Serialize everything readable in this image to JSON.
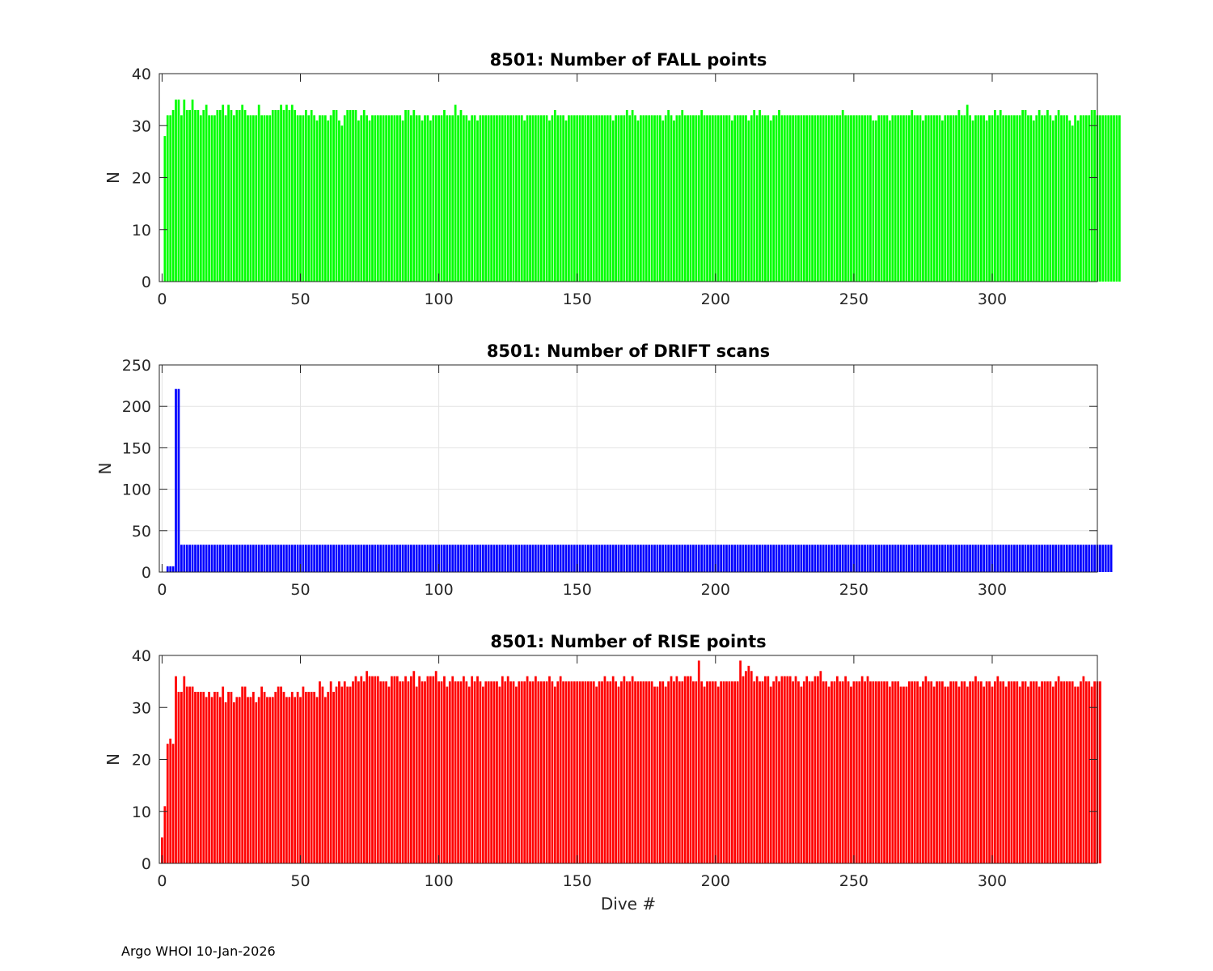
{
  "footer": "Argo WHOI 10-Jan-2026",
  "chart_data": [
    {
      "type": "bar",
      "title": "8501: Number of FALL points",
      "xlabel": "",
      "ylabel": "N",
      "xlim": [
        -1,
        338
      ],
      "ylim": [
        0,
        40
      ],
      "xticks": [
        0,
        50,
        100,
        150,
        200,
        250,
        300
      ],
      "yticks": [
        0,
        10,
        20,
        30,
        40
      ],
      "grid": false,
      "color": "#00ff00",
      "x_start": 1,
      "values": [
        28,
        32,
        32,
        33,
        35,
        35,
        32,
        35,
        33,
        33,
        35,
        33,
        33,
        32,
        33,
        34,
        32,
        32,
        32,
        33,
        33,
        34,
        32,
        34,
        33,
        32,
        33,
        33,
        34,
        33,
        32,
        32,
        32,
        32,
        34,
        32,
        32,
        32,
        32,
        33,
        33,
        33,
        34,
        33,
        34,
        33,
        34,
        33,
        32,
        32,
        32,
        33,
        32,
        33,
        32,
        31,
        32,
        32,
        32,
        31,
        32,
        33,
        33,
        31,
        30,
        32,
        33,
        33,
        33,
        33,
        31,
        32,
        33,
        32,
        31,
        32,
        32,
        32,
        32,
        32,
        32,
        32,
        32,
        32,
        32,
        32,
        31,
        33,
        33,
        32,
        33,
        32,
        32,
        31,
        32,
        32,
        31,
        32,
        32,
        32,
        32,
        33,
        32,
        32,
        32,
        34,
        32,
        33,
        32,
        32,
        31,
        32,
        32,
        31,
        32,
        32,
        32,
        32,
        32,
        32,
        32,
        32,
        32,
        32,
        32,
        32,
        32,
        32,
        32,
        32,
        31,
        32,
        32,
        32,
        32,
        32,
        32,
        32,
        32,
        31,
        32,
        33,
        32,
        32,
        32,
        31,
        32,
        32,
        32,
        32,
        32,
        32,
        32,
        32,
        32,
        32,
        32,
        32,
        32,
        32,
        32,
        32,
        31,
        32,
        32,
        32,
        32,
        33,
        32,
        33,
        32,
        31,
        32,
        32,
        32,
        32,
        32,
        32,
        32,
        32,
        31,
        32,
        33,
        32,
        31,
        32,
        32,
        33,
        32,
        32,
        32,
        32,
        32,
        32,
        33,
        32,
        32,
        32,
        32,
        32,
        32,
        32,
        32,
        32,
        32,
        31,
        32,
        32,
        32,
        32,
        32,
        31,
        32,
        33,
        32,
        33,
        32,
        32,
        32,
        31,
        32,
        32,
        33,
        32,
        32,
        32,
        32,
        32,
        32,
        32,
        32,
        32,
        32,
        32,
        32,
        32,
        32,
        32,
        32,
        32,
        32,
        32,
        32,
        32,
        32,
        33,
        32,
        32,
        32,
        32,
        32,
        32,
        32,
        32,
        32,
        32,
        31,
        31,
        32,
        32,
        32,
        32,
        31,
        32,
        32,
        32,
        32,
        32,
        32,
        32,
        33,
        32,
        32,
        32,
        31,
        32,
        32,
        32,
        32,
        32,
        32,
        31,
        32,
        32,
        32,
        32,
        32,
        33,
        32,
        32,
        34,
        32,
        31,
        32,
        32,
        32,
        32,
        31,
        32,
        32,
        33,
        32,
        33,
        32,
        32,
        32,
        32,
        32,
        32,
        32,
        33,
        33,
        32,
        32,
        31,
        32,
        33,
        32,
        32,
        33,
        32,
        31,
        32,
        33,
        32,
        32,
        32,
        31,
        30,
        32,
        31,
        32,
        32,
        32,
        32,
        33,
        33,
        32,
        32,
        32,
        32,
        32,
        32,
        32,
        32,
        32
      ]
    },
    {
      "type": "bar",
      "title": "8501: Number of DRIFT scans",
      "xlabel": "",
      "ylabel": "N",
      "xlim": [
        -1,
        338
      ],
      "ylim": [
        0,
        250
      ],
      "xticks": [
        0,
        50,
        100,
        150,
        200,
        250,
        300
      ],
      "yticks": [
        0,
        50,
        100,
        150,
        200,
        250
      ],
      "grid": true,
      "color": "#0000ff",
      "x_start": 1,
      "values": [
        0,
        7,
        7,
        7,
        221,
        221,
        33,
        33,
        33,
        33,
        33,
        33,
        33,
        33,
        33,
        33,
        33,
        33,
        33,
        33,
        33,
        33,
        33,
        33,
        33,
        33,
        33,
        33,
        33,
        33,
        33,
        33,
        33,
        33,
        33,
        33,
        33,
        33,
        33,
        33,
        33,
        33,
        33,
        33,
        33,
        33,
        33,
        33,
        33,
        33,
        33,
        33,
        33,
        33,
        33,
        33,
        33,
        33,
        33,
        33,
        33,
        33,
        33,
        33,
        33,
        33,
        33,
        33,
        33,
        33,
        33,
        33,
        33,
        33,
        33,
        33,
        33,
        33,
        33,
        33,
        33,
        33,
        33,
        33,
        33,
        33,
        33,
        33,
        33,
        33,
        33,
        33,
        33,
        33,
        33,
        33,
        33,
        33,
        33,
        33,
        33,
        33,
        33,
        33,
        33,
        33,
        33,
        33,
        33,
        33,
        33,
        33,
        33,
        33,
        33,
        33,
        33,
        33,
        33,
        33,
        33,
        33,
        33,
        33,
        33,
        33,
        33,
        33,
        33,
        33,
        33,
        33,
        33,
        33,
        33,
        33,
        33,
        33,
        33,
        33,
        33,
        33,
        33,
        33,
        33,
        33,
        33,
        33,
        33,
        33,
        33,
        33,
        33,
        33,
        33,
        33,
        33,
        33,
        33,
        33,
        33,
        33,
        33,
        33,
        33,
        33,
        33,
        33,
        33,
        33,
        33,
        33,
        33,
        33,
        33,
        33,
        33,
        33,
        33,
        33,
        33,
        33,
        33,
        33,
        33,
        33,
        33,
        33,
        33,
        33,
        33,
        33,
        33,
        33,
        33,
        33,
        33,
        33,
        33,
        33,
        33,
        33,
        33,
        33,
        33,
        33,
        33,
        33,
        33,
        33,
        33,
        33,
        33,
        33,
        33,
        33,
        33,
        33,
        33,
        33,
        33,
        33,
        33,
        33,
        33,
        33,
        33,
        33,
        33,
        33,
        33,
        33,
        33,
        33,
        33,
        33,
        33,
        33,
        33,
        33,
        33,
        33,
        33,
        33,
        33,
        33,
        33,
        33,
        33,
        33,
        33,
        33,
        33,
        33,
        33,
        33,
        33,
        33,
        33,
        33,
        33,
        33,
        33,
        33,
        33,
        33,
        33,
        33,
        33,
        33,
        33,
        33,
        33,
        33,
        33,
        33,
        33,
        33,
        33,
        33,
        33,
        33,
        33,
        33,
        33,
        33,
        33,
        33,
        33,
        33,
        33,
        33,
        33,
        33,
        33,
        33,
        33,
        33,
        33,
        33,
        33,
        33,
        33,
        33,
        33,
        33,
        33,
        33,
        33,
        33,
        33,
        33,
        33,
        33,
        33,
        33,
        33,
        33,
        33,
        33,
        33,
        33,
        33,
        33,
        33,
        33,
        33,
        33,
        33,
        33,
        33,
        33,
        33,
        33,
        33,
        33,
        33,
        33,
        33,
        33,
        33,
        33,
        33
      ]
    },
    {
      "type": "bar",
      "title": "8501: Number of RISE points",
      "xlabel": "Dive #",
      "ylabel": "N",
      "xlim": [
        -1,
        338
      ],
      "ylim": [
        0,
        40
      ],
      "xticks": [
        0,
        50,
        100,
        150,
        200,
        250,
        300
      ],
      "yticks": [
        0,
        10,
        20,
        30,
        40
      ],
      "grid": false,
      "color": "#ff0000",
      "x_start": 0,
      "values": [
        5,
        11,
        23,
        24,
        23,
        36,
        33,
        33,
        36,
        34,
        34,
        34,
        33,
        33,
        33,
        33,
        32,
        33,
        32,
        33,
        33,
        32,
        34,
        31,
        33,
        33,
        31,
        32,
        32,
        34,
        34,
        32,
        32,
        33,
        31,
        32,
        34,
        33,
        32,
        32,
        32,
        33,
        34,
        34,
        33,
        32,
        32,
        33,
        32,
        33,
        32,
        34,
        33,
        33,
        33,
        33,
        32,
        35,
        34,
        32,
        33,
        35,
        33,
        34,
        35,
        34,
        35,
        34,
        34,
        35,
        36,
        35,
        36,
        35,
        37,
        36,
        36,
        36,
        36,
        35,
        35,
        35,
        34,
        36,
        36,
        36,
        35,
        35,
        36,
        35,
        36,
        37,
        34,
        36,
        35,
        35,
        36,
        36,
        36,
        37,
        35,
        35,
        36,
        34,
        35,
        36,
        35,
        35,
        35,
        36,
        35,
        34,
        36,
        35,
        36,
        35,
        34,
        35,
        35,
        35,
        35,
        35,
        34,
        36,
        35,
        36,
        35,
        35,
        34,
        35,
        35,
        35,
        36,
        35,
        35,
        36,
        35,
        35,
        35,
        35,
        36,
        35,
        34,
        35,
        36,
        35,
        35,
        35,
        35,
        35,
        35,
        35,
        35,
        35,
        35,
        35,
        35,
        34,
        35,
        35,
        36,
        35,
        35,
        36,
        35,
        34,
        35,
        36,
        35,
        35,
        36,
        35,
        35,
        35,
        35,
        35,
        35,
        35,
        34,
        34,
        35,
        35,
        34,
        35,
        36,
        35,
        36,
        35,
        35,
        36,
        36,
        36,
        35,
        35,
        39,
        35,
        34,
        35,
        35,
        35,
        35,
        34,
        35,
        35,
        35,
        35,
        35,
        35,
        35,
        39,
        36,
        37,
        38,
        37,
        35,
        36,
        35,
        35,
        36,
        36,
        34,
        35,
        36,
        35,
        36,
        36,
        36,
        36,
        35,
        36,
        35,
        34,
        35,
        36,
        35,
        35,
        36,
        36,
        37,
        35,
        35,
        34,
        35,
        35,
        36,
        35,
        35,
        36,
        35,
        34,
        35,
        35,
        35,
        36,
        35,
        36,
        35,
        35,
        35,
        35,
        35,
        35,
        35,
        34,
        35,
        35,
        35,
        34,
        34,
        34,
        35,
        35,
        35,
        35,
        34,
        35,
        36,
        35,
        35,
        34,
        35,
        35,
        35,
        34,
        34,
        35,
        35,
        35,
        34,
        35,
        35,
        34,
        35,
        35,
        36,
        35,
        35,
        34,
        35,
        35,
        34,
        35,
        36,
        35,
        35,
        34,
        35,
        35,
        35,
        35,
        34,
        35,
        35,
        34,
        35,
        35,
        35,
        34,
        35,
        35,
        35,
        35,
        34,
        35,
        36,
        35,
        35,
        35,
        35,
        35,
        34,
        34,
        35,
        36,
        35,
        35,
        34,
        35,
        35,
        35
      ]
    }
  ]
}
